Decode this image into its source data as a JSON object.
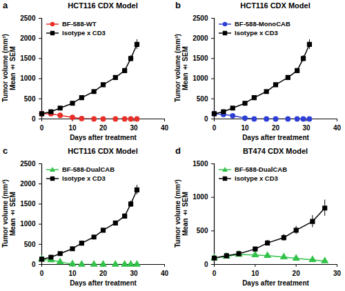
{
  "chart_data": [
    {
      "type": "line",
      "panel": "a",
      "title": "HCT116 CDX Model",
      "x_label": "Days after treatment",
      "y_label": "Tumor volume (mm³)\nMean ± SEM",
      "x": [
        0,
        3,
        6,
        10,
        13,
        17,
        20,
        24,
        27,
        29,
        31
      ],
      "xlim": [
        0,
        40
      ],
      "xticks": [
        0,
        10,
        20,
        30,
        40
      ],
      "ylim": [
        0,
        2500
      ],
      "yticks": [
        0,
        500,
        1000,
        1500,
        2000,
        2500
      ],
      "legend": "upper left",
      "series": [
        {
          "name": "BF-588-WT",
          "color": "#e8302a",
          "marker": "circle",
          "values": [
            130,
            130,
            90,
            40,
            10,
            0,
            0,
            0,
            0,
            0,
            0
          ],
          "errors": [
            10,
            12,
            10,
            8,
            5,
            0,
            0,
            0,
            0,
            0,
            0
          ]
        },
        {
          "name": "Isotype x CD3",
          "color": "#000000",
          "marker": "square",
          "values": [
            130,
            180,
            270,
            390,
            530,
            680,
            850,
            1030,
            1200,
            1500,
            1850
          ],
          "errors": [
            5,
            10,
            15,
            20,
            25,
            30,
            35,
            45,
            55,
            75,
            120
          ]
        }
      ]
    },
    {
      "type": "line",
      "panel": "b",
      "title": "HCT116 CDX Model",
      "x_label": "Days after treatment",
      "y_label": "Tumor volume (mm³)\nMean ± SEM",
      "x": [
        0,
        3,
        6,
        10,
        13,
        17,
        20,
        24,
        27,
        29,
        31
      ],
      "xlim": [
        0,
        40
      ],
      "xticks": [
        0,
        10,
        20,
        30,
        40
      ],
      "ylim": [
        0,
        2500
      ],
      "yticks": [
        0,
        500,
        1000,
        1500,
        2000,
        2500
      ],
      "legend": "upper left",
      "series": [
        {
          "name": "BF-588-MonoCAB",
          "color": "#2f3fd6",
          "marker": "circle",
          "values": [
            130,
            110,
            80,
            20,
            0,
            0,
            0,
            0,
            0,
            0,
            0
          ],
          "errors": [
            10,
            10,
            8,
            5,
            0,
            0,
            0,
            0,
            0,
            0,
            0
          ]
        },
        {
          "name": "Isotype x CD3",
          "color": "#000000",
          "marker": "square",
          "values": [
            130,
            180,
            270,
            390,
            530,
            680,
            850,
            1030,
            1200,
            1500,
            1850
          ],
          "errors": [
            5,
            10,
            15,
            20,
            25,
            30,
            35,
            45,
            55,
            75,
            120
          ]
        }
      ]
    },
    {
      "type": "line",
      "panel": "c",
      "title": "HCT116 CDX Model",
      "x_label": "Days after treatment",
      "y_label": "Tumor volume (mm³)\nMean ± SEM",
      "x": [
        0,
        3,
        6,
        10,
        13,
        17,
        20,
        24,
        27,
        29,
        31
      ],
      "xlim": [
        0,
        40
      ],
      "xticks": [
        0,
        10,
        20,
        30,
        40
      ],
      "ylim": [
        0,
        2500
      ],
      "yticks": [
        0,
        500,
        1000,
        1500,
        2000,
        2500
      ],
      "legend": "upper left",
      "series": [
        {
          "name": "BF-588-DualCAB",
          "color": "#33c24a",
          "marker": "triangle",
          "values": [
            130,
            110,
            60,
            10,
            0,
            0,
            0,
            0,
            0,
            0,
            0
          ],
          "errors": [
            10,
            10,
            8,
            4,
            0,
            0,
            0,
            0,
            0,
            0,
            0
          ]
        },
        {
          "name": "Isotype x CD3",
          "color": "#000000",
          "marker": "square",
          "values": [
            130,
            180,
            270,
            390,
            530,
            680,
            850,
            1030,
            1200,
            1500,
            1850
          ],
          "errors": [
            5,
            10,
            15,
            20,
            25,
            30,
            35,
            45,
            55,
            75,
            120
          ]
        }
      ]
    },
    {
      "type": "line",
      "panel": "d",
      "title": "BT474 CDX Model",
      "x_label": "Days after treatment",
      "y_label": "Tumor volume (mm³)\nMean ± SEM",
      "x": [
        0,
        3,
        6,
        10,
        13,
        17,
        20,
        24,
        27
      ],
      "xlim": [
        0,
        30
      ],
      "xticks": [
        0,
        10,
        20,
        30
      ],
      "ylim": [
        0,
        1500
      ],
      "yticks": [
        0,
        500,
        1000,
        1500
      ],
      "legend": "upper left",
      "series": [
        {
          "name": "BF-588-DualCAB",
          "color": "#33c24a",
          "marker": "triangle",
          "values": [
            95,
            120,
            150,
            140,
            130,
            110,
            90,
            70,
            50
          ],
          "errors": [
            8,
            10,
            12,
            12,
            12,
            10,
            10,
            8,
            8
          ]
        },
        {
          "name": "Isotype x CD3",
          "color": "#000000",
          "marker": "square",
          "values": [
            95,
            130,
            160,
            230,
            320,
            400,
            510,
            640,
            840
          ],
          "errors": [
            10,
            15,
            20,
            30,
            40,
            50,
            60,
            90,
            120
          ]
        }
      ]
    }
  ]
}
